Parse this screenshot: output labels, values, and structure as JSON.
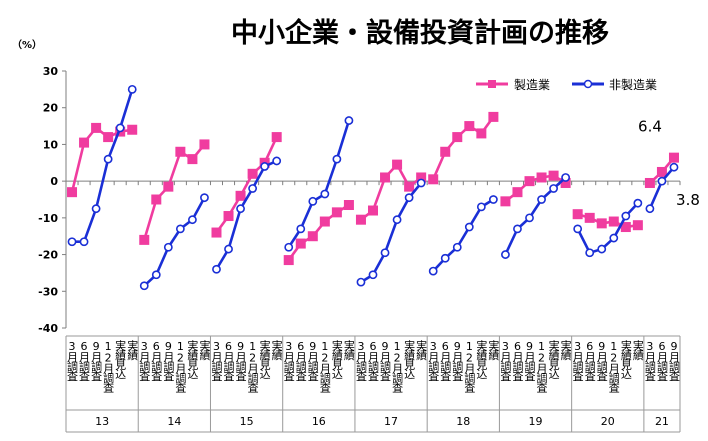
{
  "chart_data": {
    "type": "line",
    "title": "中小企業・設備投資計画の推移",
    "unit_label": "（%）",
    "ylim": [
      -40,
      30
    ],
    "yticks": [
      "30",
      "20",
      "10",
      "0",
      "-10",
      "-20",
      "-30",
      "-40"
    ],
    "grid": false,
    "legend_position": "top-right",
    "groups": [
      {
        "name": "13",
        "labels": [
          "3月調査",
          "6月調査",
          "9月調査",
          "12月調査",
          "実績見込",
          "実績"
        ]
      },
      {
        "name": "14",
        "labels": [
          "3月調査",
          "6月調査",
          "9月調査",
          "12月調査",
          "実績見込",
          "実績"
        ]
      },
      {
        "name": "15",
        "labels": [
          "3月調査",
          "6月調査",
          "9月調査",
          "12月調査",
          "実績見込",
          "実績"
        ]
      },
      {
        "name": "16",
        "labels": [
          "3月調査",
          "6月調査",
          "9月調査",
          "12月調査",
          "実績見込",
          "実績"
        ]
      },
      {
        "name": "17",
        "labels": [
          "3月調査",
          "6月調査",
          "9月調査",
          "12月調査",
          "実績見込",
          "実績"
        ]
      },
      {
        "name": "18",
        "labels": [
          "3月調査",
          "6月調査",
          "9月調査",
          "12月調査",
          "実績見込",
          "実績"
        ]
      },
      {
        "name": "19",
        "labels": [
          "3月調査",
          "6月調査",
          "9月調査",
          "12月調査",
          "実績見込",
          "実績"
        ]
      },
      {
        "name": "20",
        "labels": [
          "3月調査",
          "6月調査",
          "9月調査",
          "12月調査",
          "実績見込",
          "実績"
        ]
      },
      {
        "name": "21",
        "labels": [
          "3月調査",
          "6月調査",
          "9月調査"
        ]
      }
    ],
    "series": [
      {
        "name": "製造業",
        "color": "#f03c9f",
        "marker": "square",
        "groups": [
          [
            -3,
            10.5,
            14.5,
            12,
            13.5,
            14
          ],
          [
            -16,
            -5,
            -1.5,
            8,
            6,
            10
          ],
          [
            -14,
            -9.5,
            -4,
            2,
            5,
            12
          ],
          [
            -21.5,
            -17,
            -15,
            -11,
            -8.5,
            -6.5
          ],
          [
            -10.5,
            -8,
            1,
            4.5,
            -1.5,
            1
          ],
          [
            0.5,
            8,
            12,
            15,
            13,
            17.5
          ],
          [
            -5.5,
            -3,
            0,
            1,
            1.5,
            -0.5
          ],
          [
            -9,
            -10,
            -11.5,
            -11,
            -12.5,
            -12
          ],
          [
            -0.5,
            2.5,
            6.4
          ]
        ]
      },
      {
        "name": "非製造業",
        "color": "#1a2fd6",
        "marker": "circle",
        "groups": [
          [
            -16.5,
            -16.5,
            -7.5,
            6,
            14.5,
            25
          ],
          [
            -28.5,
            -25.5,
            -18,
            -13,
            -10.5,
            -4.5
          ],
          [
            -24,
            -18.5,
            -7.5,
            -2,
            4,
            5.5
          ],
          [
            -18,
            -13,
            -5.5,
            -3.5,
            6,
            16.5
          ],
          [
            -27.5,
            -25.5,
            -19.5,
            -10.5,
            -4.5,
            -0.5
          ],
          [
            -24.5,
            -21,
            -18,
            -12.5,
            -7,
            -5
          ],
          [
            -20,
            -13,
            -10,
            -5,
            -2,
            1
          ],
          [
            -13,
            -19.5,
            -18.5,
            -15.5,
            -9.5,
            -6
          ],
          [
            -7.5,
            0,
            3.8
          ]
        ]
      }
    ],
    "annotations": [
      {
        "text": "6.4",
        "series": "製造業",
        "group": 8,
        "index": 2
      },
      {
        "text": "3.8",
        "series": "非製造業",
        "group": 8,
        "index": 2
      }
    ]
  }
}
